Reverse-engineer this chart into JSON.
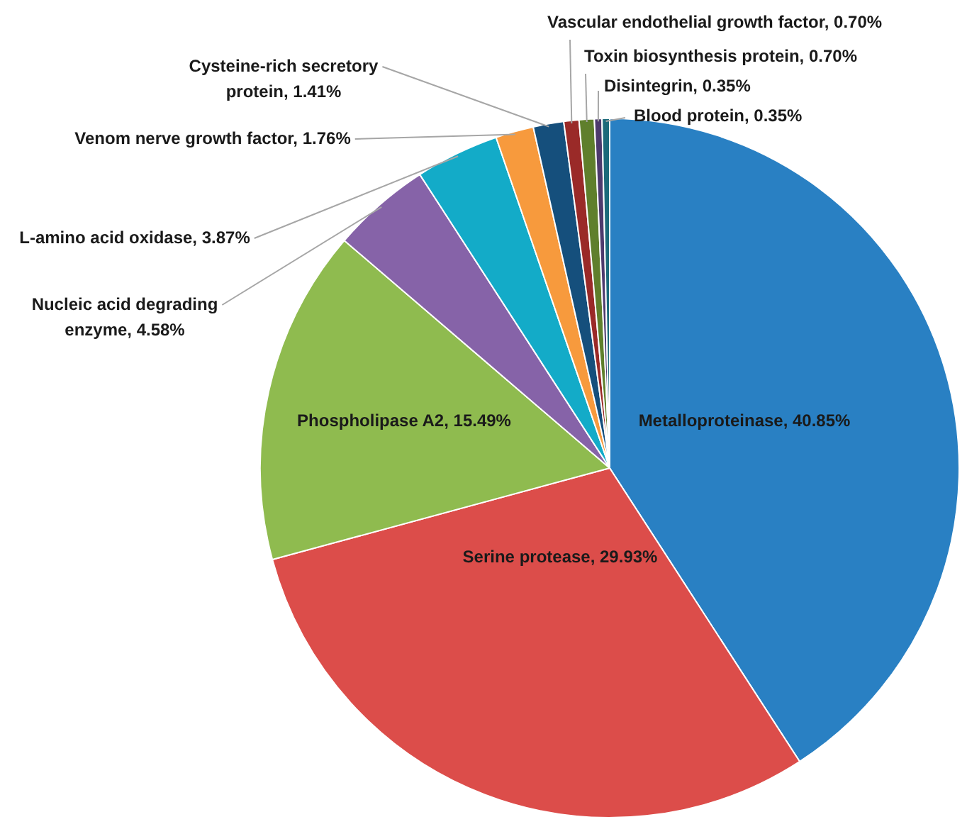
{
  "chart_data": {
    "type": "pie",
    "categories": [
      "Metalloproteinase",
      "Serine protease",
      "Phospholipase A2",
      "Nucleic acid degrading enzyme",
      "L-amino acid oxidase",
      "Venom nerve growth factor",
      "Cysteine-rich secretory protein",
      "Vascular endothelial growth factor",
      "Toxin biosynthesis protein",
      "Disintegrin",
      "Blood protein"
    ],
    "values": [
      40.85,
      29.93,
      15.49,
      4.58,
      3.87,
      1.76,
      1.41,
      0.7,
      0.7,
      0.35,
      0.35
    ],
    "value_labels": [
      "40.85%",
      "29.93%",
      "15.49%",
      "4.58%",
      "3.87%",
      "1.76%",
      "1.41%",
      "0.70%",
      "0.70%",
      "0.35%",
      "0.35%"
    ],
    "colors": [
      "#2980c3",
      "#dc4d4a",
      "#8fbb4f",
      "#8663a8",
      "#13abc8",
      "#f79a3d",
      "#154f7c",
      "#9a2a28",
      "#5f7f2c",
      "#4d3a6d",
      "#1c6a7a"
    ],
    "legend": false
  }
}
